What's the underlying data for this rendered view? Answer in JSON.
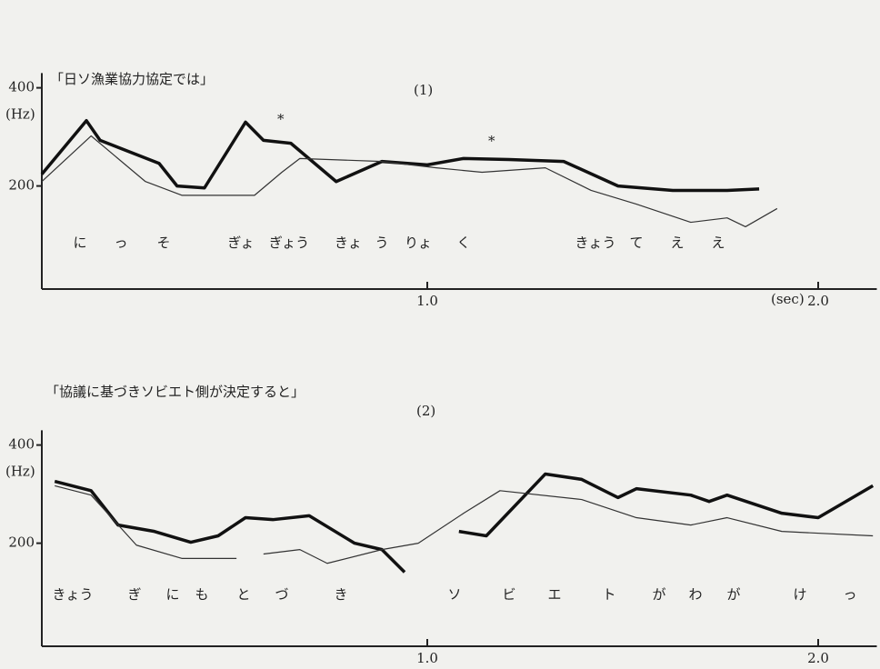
{
  "charts": [
    {
      "type": "line",
      "title": "「日ソ漁業協力協定では」",
      "label": "(1)",
      "y_unit": "(Hz)",
      "x_unit": "(sec)",
      "xlim": [
        0,
        2.15
      ],
      "ylim": [
        -10,
        430
      ],
      "xticks": [
        {
          "value": 1,
          "label": "1.0"
        },
        {
          "value": 2,
          "label": "2.0"
        }
      ],
      "yticks": [
        200,
        400
      ],
      "asterisks": [
        "*",
        "*"
      ],
      "syllables": [
        "に",
        "っ",
        "そ",
        "ぎょ",
        "ぎょう",
        "きょ",
        "う",
        "りょ",
        "く",
        "きょう",
        "て",
        "え",
        "え"
      ],
      "series": [
        {
          "color": "#111",
          "x": [
            0.014,
            0.128,
            0.163,
            0.314,
            0.36,
            0.43,
            0.535,
            0.581,
            0.651,
            0.767,
            0.884,
            1.0,
            1.093,
            1.209,
            1.349,
            1.488,
            1.628,
            1.767,
            1.849
          ],
          "values": [
            224,
            333,
            293,
            246,
            200,
            196,
            330,
            293,
            287,
            209,
            250,
            243,
            256,
            254,
            250,
            200,
            191,
            191,
            194
          ]
        },
        {
          "color": "#333",
          "x": [
            0.014,
            0.14,
            0.279,
            0.372,
            0.558,
            0.628,
            0.674,
            0.884,
            1.023,
            1.14,
            1.302,
            1.419,
            1.535,
            1.674,
            1.767,
            1.814,
            1.895
          ],
          "values": [
            209,
            302,
            209,
            181,
            181,
            228,
            256,
            250,
            237,
            228,
            237,
            191,
            163,
            126,
            135,
            117,
            154
          ]
        }
      ]
    },
    {
      "type": "line",
      "title": "「協議に基づきソビエト側が決定すると」",
      "label": "(2)",
      "y_unit": "(Hz)",
      "xlim": [
        0,
        2.15
      ],
      "ylim": [
        -10,
        430
      ],
      "xticks": [
        {
          "value": 1,
          "label": "1.0"
        },
        {
          "value": 2,
          "label": "2.0"
        }
      ],
      "yticks": [
        200,
        400
      ],
      "syllables": [
        "きょう",
        "ぎ",
        "に",
        "も",
        "と",
        "づ",
        "き",
        "ソ",
        "ビ",
        "エ",
        "ト",
        "が",
        "わ",
        "が",
        "け",
        "っ"
      ],
      "series": [
        {
          "color": "#111",
          "x": [
            0.047,
            0.14,
            0.209,
            0.302,
            0.395,
            0.465,
            0.535,
            0.605,
            0.698,
            0.814,
            0.884,
            0.942,
            null,
            1.081,
            1.151,
            1.302,
            1.395,
            1.488,
            1.535,
            1.674,
            1.721,
            1.767,
            1.907,
            2.0,
            2.14
          ],
          "values": [
            326,
            307,
            237,
            224,
            202,
            215,
            252,
            248,
            256,
            200,
            187,
            141,
            null,
            224,
            215,
            341,
            330,
            293,
            311,
            298,
            285,
            298,
            261,
            252,
            317
          ]
        },
        {
          "color": "#333",
          "x": [
            0.047,
            0.14,
            0.256,
            0.372,
            0.512,
            null,
            0.581,
            0.674,
            0.744,
            0.884,
            0.977,
            1.093,
            1.186,
            1.395,
            1.535,
            1.674,
            1.767,
            1.907,
            2.14
          ],
          "values": [
            317,
            298,
            196,
            169,
            169,
            null,
            178,
            187,
            159,
            187,
            200,
            261,
            307,
            289,
            252,
            237,
            252,
            224,
            215
          ]
        }
      ]
    }
  ]
}
